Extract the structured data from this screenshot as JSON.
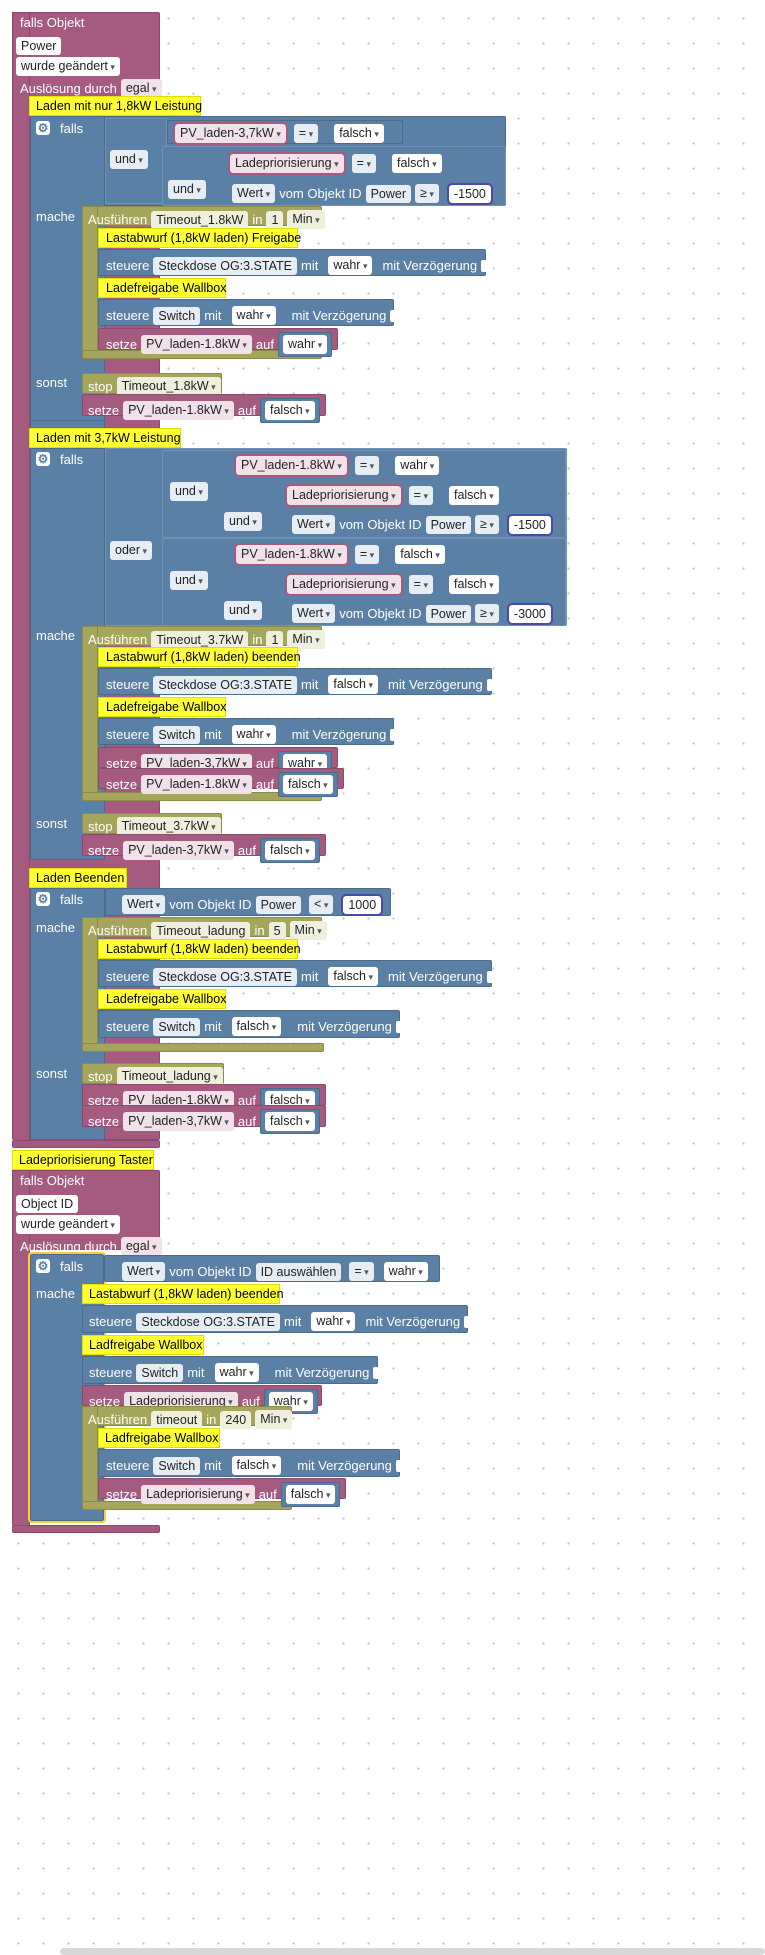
{
  "trigger1": {
    "falls_objekt": "falls Objekt",
    "object": "Power",
    "changed": "wurde geändert",
    "trigger_by": "Auslösung durch",
    "trigger_value": "egal"
  },
  "comments": {
    "c1": "Laden mit nur 1,8kW Leistung",
    "c2": "Lastabwurf (1,8kW laden) Freigabe",
    "c3": "Ladefreigabe Wallbox",
    "c4": "Laden mit 3,7kW Leistung",
    "c5": "Lastabwurf (1,8kW laden) beenden",
    "c6": "Ladefreigabe Wallbox",
    "c7": "Laden Beenden",
    "c8": "Lastabwurf (1,8kW laden) beenden",
    "c9": "Ladefreigabe Wallbox",
    "c10": "Ladepriorisierung Taster",
    "c11": "Lastabwurf (1,8kW laden) beenden",
    "c12": "Ladfreigabe Wallbox",
    "c13": "Ladfreigabe Wallbox"
  },
  "kw": {
    "falls": "falls",
    "und": "und",
    "oder": "oder",
    "mache": "mache",
    "sonst": "sonst",
    "eq": "=",
    "gte": "≥",
    "lt": "<",
    "wert": "Wert",
    "vom_objekt": "vom Objekt ID",
    "ausfuehren": "Ausführen",
    "in": "in",
    "min": "Min",
    "steuere": "steuere",
    "mit": "mit",
    "mit_verz": "mit Verzögerung",
    "setze": "setze",
    "auf": "auf",
    "stop": "stop",
    "wahr": "wahr",
    "falsch": "falsch"
  },
  "names": {
    "pv37": "PV_laden-3,7kW",
    "pv18": "PV_laden-1.8kW",
    "ladeprio": "Ladepriorisierung",
    "power": "Power",
    "timeout18": "Timeout_1.8kW",
    "timeout37": "Timeout_3.7kW",
    "timeoutladung": "Timeout_ladung",
    "timeout": "timeout",
    "steckdose": "Steckdose OG:3.STATE",
    "switch": "Switch",
    "id_auswaehlen": "ID auswählen"
  },
  "numbers": {
    "n1500": "-1500",
    "n3000": "-3000",
    "n1000": "1000",
    "one": "1",
    "five": "5",
    "n240": "240"
  },
  "trigger2": {
    "falls_objekt": "falls Objekt",
    "object": "Object ID",
    "changed": "wurde geändert",
    "trigger_by": "Auslösung durch",
    "trigger_value": "egal"
  },
  "colors": {
    "event": "#a55b80",
    "logic": "#5b80a5",
    "action": "#a5a55b",
    "variable": "#a55b80",
    "comment": "#ffff33"
  }
}
